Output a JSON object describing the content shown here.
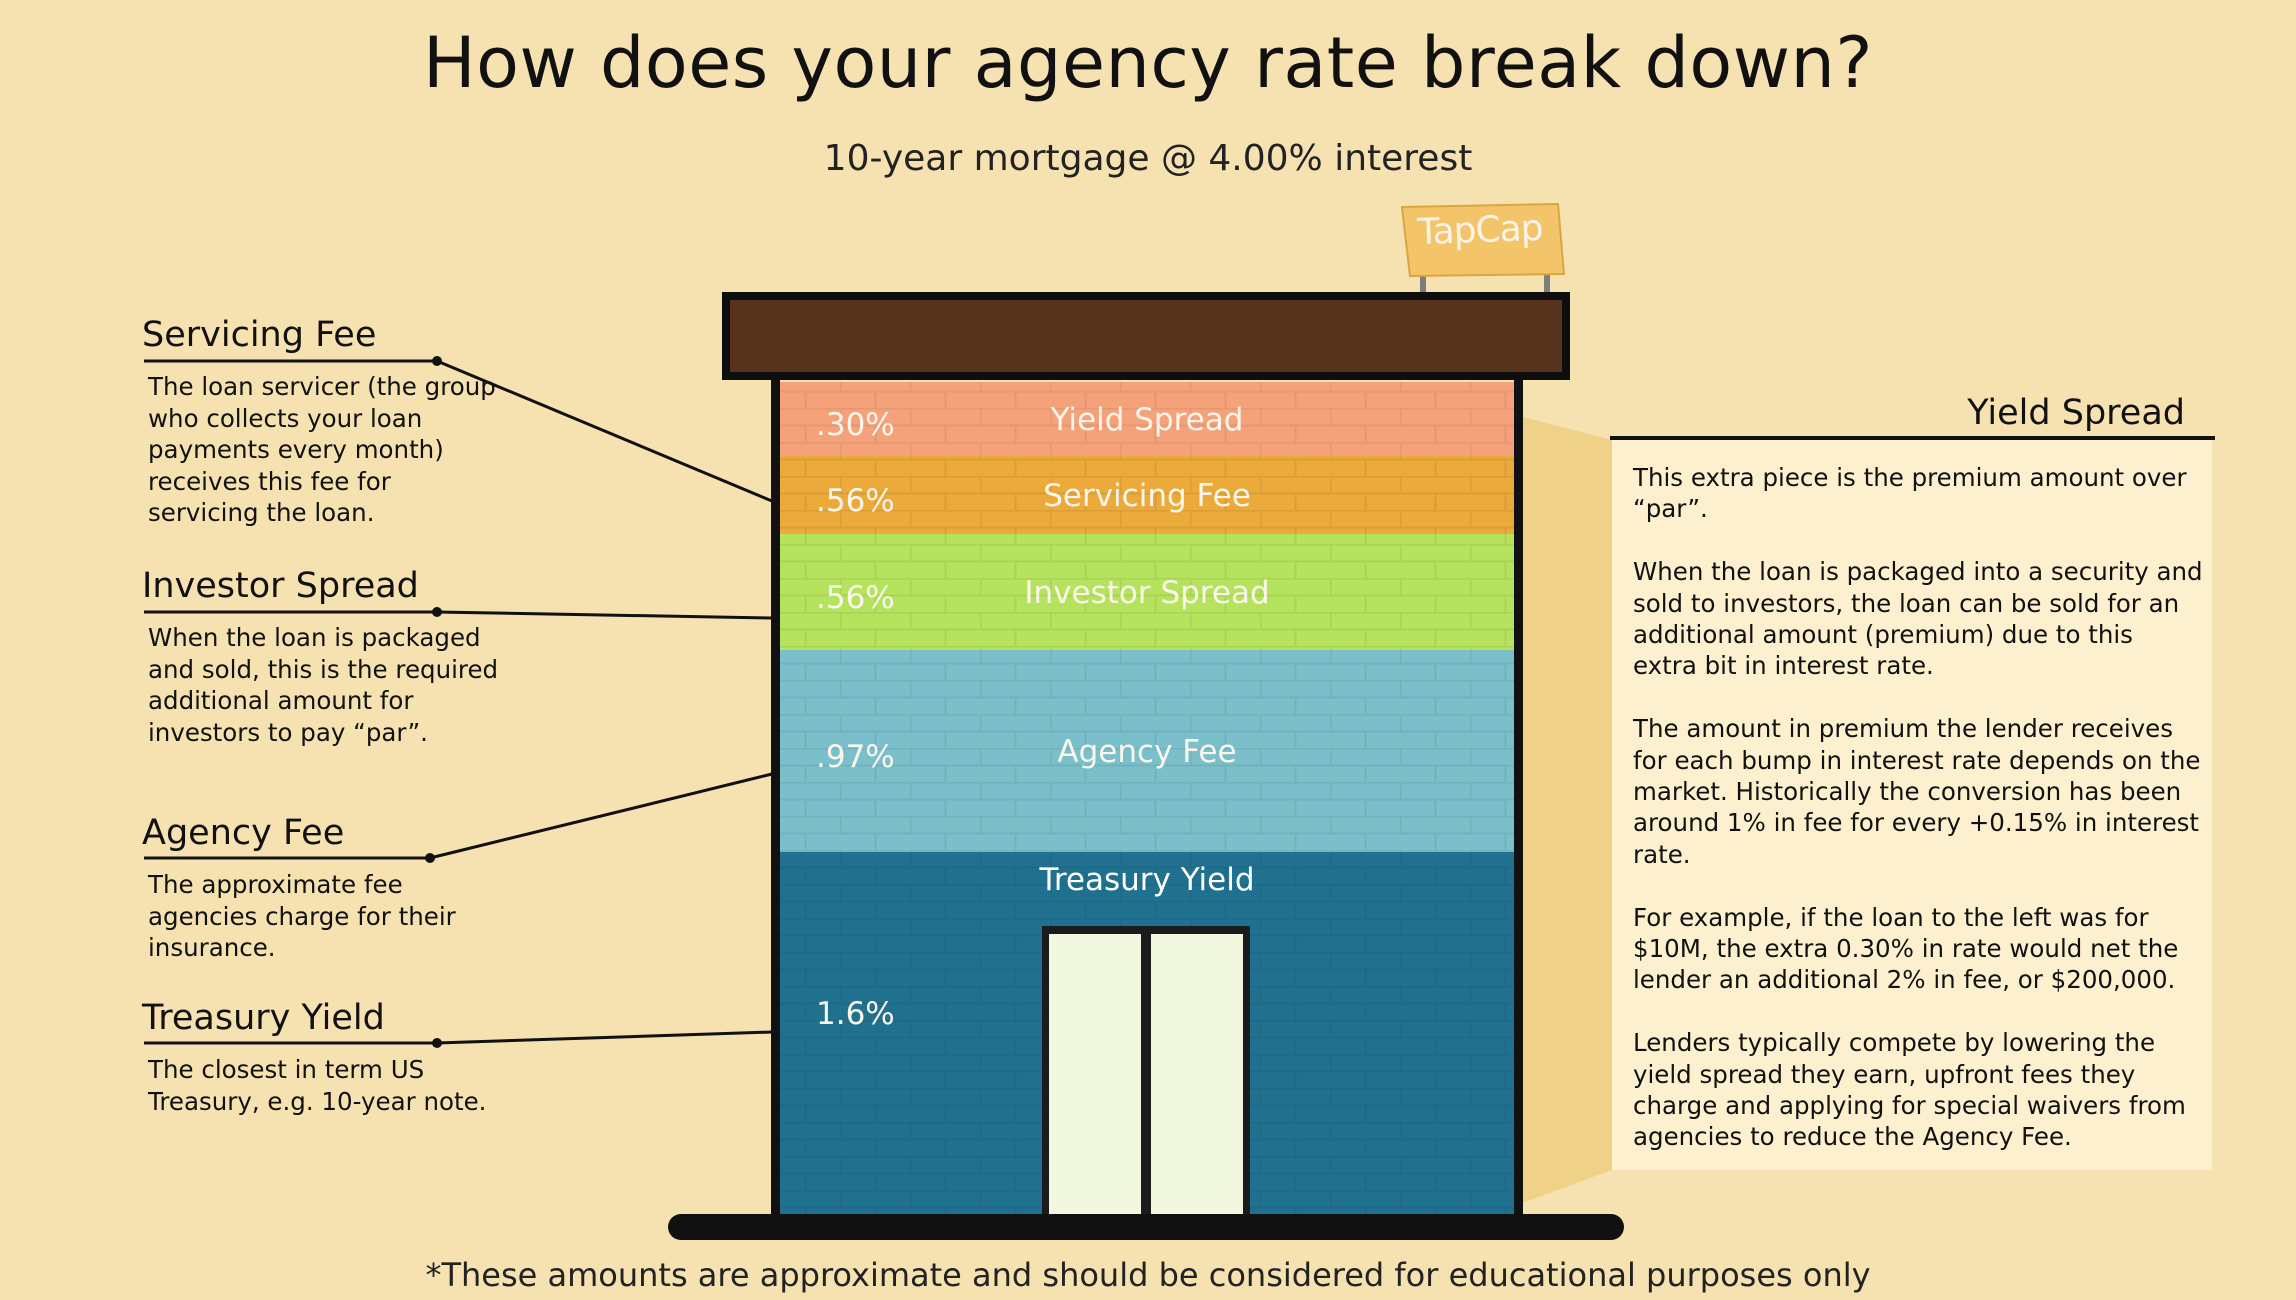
{
  "title": "How does your agency rate break down?",
  "subtitle": "10-year mortgage @ 4.00% interest",
  "footnote": "*These amounts are approximate and should be considered for educational purposes only",
  "logo_text": "TapCap",
  "colors": {
    "background": "#f6e2b0",
    "roof": "#57331e",
    "yield_spread": "#f5a27a",
    "servicing_fee": "#ebaa3a",
    "investor_spread": "#b6e35e",
    "agency_fee": "#7bbfca",
    "treasury_yield": "#20718f",
    "door": "#f2f7df",
    "callout_box": "#fdf0cf",
    "callout_wedge": "#efd187",
    "sign": "#f4c46a"
  },
  "annotations_left": [
    {
      "title": "Servicing Fee",
      "body": "The loan servicer (the group who collects your loan payments every month) receives this fee for servicing the loan."
    },
    {
      "title": "Investor Spread",
      "body": "When the loan is packaged and sold, this is the required additional amount for investors to pay “par”."
    },
    {
      "title": "Agency Fee",
      "body": "The approximate fee agencies charge for their insurance."
    },
    {
      "title": "Treasury Yield",
      "body": "The closest in term US Treasury, e.g. 10-year note."
    }
  ],
  "annotation_right": {
    "title": "Yield Spread",
    "paragraphs": [
      "This extra piece is the premium amount over “par”.",
      "When the loan is packaged into a security and sold to investors, the loan can be sold for an additional amount (premium) due to this extra bit in interest rate.",
      "The amount in premium the lender receives for each bump in interest rate depends on the market. Historically the conversion has been around 1% in fee for every +0.15% in interest rate.",
      "For example, if the loan to the left was for $10M, the extra 0.30% in rate would net the lender an additional 2% in fee, or $200,000.",
      "Lenders typically compete by lowering the yield spread they earn, upfront fees they charge and applying for special waivers from agencies to reduce the Agency Fee."
    ]
  },
  "chart_data": {
    "type": "bar",
    "stacked": true,
    "title": "How does your agency rate break down?",
    "subtitle": "10-year mortgage @ 4.00% interest",
    "total": 4.0,
    "unit": "%",
    "segments": [
      {
        "name": "Yield Spread",
        "value": 0.3,
        "label": ".30%",
        "color": "#f5a27a"
      },
      {
        "name": "Servicing Fee",
        "value": 0.56,
        "label": ".56%",
        "color": "#ebaa3a"
      },
      {
        "name": "Investor Spread",
        "value": 0.56,
        "label": ".56%",
        "color": "#b6e35e"
      },
      {
        "name": "Agency Fee",
        "value": 0.97,
        "label": ".97%",
        "color": "#7bbfca"
      },
      {
        "name": "Treasury Yield",
        "value": 1.6,
        "label": "1.6%",
        "color": "#20718f"
      }
    ]
  }
}
